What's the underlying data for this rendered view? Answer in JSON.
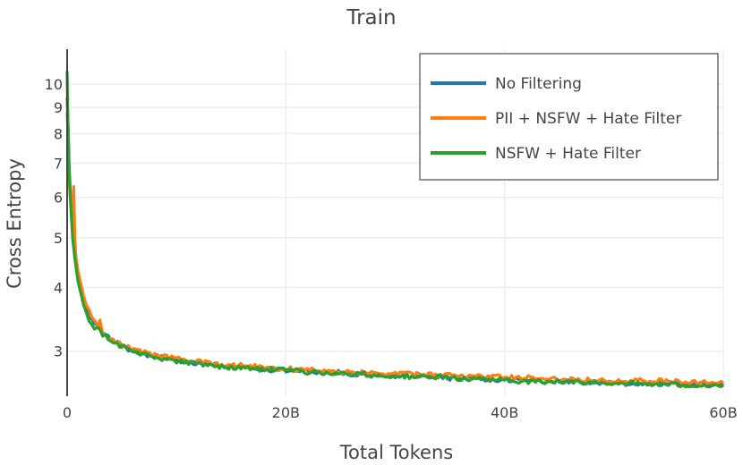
{
  "chart_data": {
    "type": "line",
    "title": "Train",
    "xlabel": "Total Tokens",
    "ylabel": "Cross Entropy",
    "x_unit": "billions of tokens",
    "xlim": [
      0,
      60
    ],
    "ylim": [
      2.45,
      11.7
    ],
    "y_scale": "log",
    "x_ticks": [
      {
        "value": 0,
        "label": "0"
      },
      {
        "value": 20,
        "label": "20B"
      },
      {
        "value": 40,
        "label": "40B"
      },
      {
        "value": 60,
        "label": "60B"
      }
    ],
    "y_ticks": [
      {
        "value": 3,
        "label": "3"
      },
      {
        "value": 4,
        "label": "4"
      },
      {
        "value": 5,
        "label": "5"
      },
      {
        "value": 6,
        "label": "6"
      },
      {
        "value": 7,
        "label": "7"
      },
      {
        "value": 8,
        "label": "8"
      },
      {
        "value": 9,
        "label": "9"
      },
      {
        "value": 10,
        "label": "10"
      }
    ],
    "grid": true,
    "legend_position": "top-right",
    "series": [
      {
        "name": "No Filtering",
        "color": "#1f77b4",
        "x": [
          0,
          0.1,
          0.2,
          0.35,
          0.5,
          0.7,
          1,
          1.5,
          2,
          2.5,
          3,
          3.5,
          4,
          5,
          6,
          8,
          10,
          12,
          15,
          20,
          25,
          30,
          35,
          40,
          45,
          50,
          55,
          60
        ],
        "y": [
          9.4,
          8.2,
          6.8,
          5.8,
          5.2,
          4.7,
          4.2,
          3.75,
          3.5,
          3.38,
          3.3,
          3.22,
          3.16,
          3.08,
          3.0,
          2.93,
          2.88,
          2.84,
          2.8,
          2.75,
          2.72,
          2.69,
          2.66,
          2.64,
          2.62,
          2.6,
          2.59,
          2.57
        ]
      },
      {
        "name": "PII + NSFW + Hate Filter",
        "color": "#ff7f0e",
        "x": [
          0,
          0.1,
          0.2,
          0.3,
          0.5,
          0.6,
          0.7,
          0.8,
          1,
          1.5,
          2,
          2.5,
          2.8,
          3.0,
          3.2,
          3.5,
          4,
          5,
          6,
          8,
          10,
          12,
          15,
          20,
          25,
          30,
          35,
          40,
          45,
          50,
          55,
          60
        ],
        "y": [
          8.8,
          7.8,
          6.4,
          5.9,
          5.6,
          6.3,
          5.0,
          4.6,
          4.3,
          3.85,
          3.6,
          3.42,
          3.35,
          3.48,
          3.28,
          3.22,
          3.18,
          3.1,
          3.02,
          2.95,
          2.9,
          2.86,
          2.82,
          2.77,
          2.74,
          2.71,
          2.69,
          2.67,
          2.65,
          2.63,
          2.62,
          2.6
        ]
      },
      {
        "name": "NSFW + Hate Filter",
        "color": "#2ca02c",
        "x": [
          0,
          0.05,
          0.15,
          0.3,
          0.5,
          0.7,
          1,
          1.5,
          2,
          2.5,
          3,
          3.5,
          4,
          5,
          6,
          8,
          10,
          12,
          15,
          20,
          25,
          30,
          35,
          40,
          45,
          50,
          55,
          60
        ],
        "y": [
          10.6,
          9.0,
          7.0,
          5.9,
          5.0,
          4.55,
          4.1,
          3.7,
          3.45,
          3.35,
          3.28,
          3.21,
          3.15,
          3.07,
          3.0,
          2.92,
          2.87,
          2.83,
          2.79,
          2.75,
          2.71,
          2.68,
          2.66,
          2.63,
          2.61,
          2.6,
          2.58,
          2.57
        ]
      }
    ]
  }
}
